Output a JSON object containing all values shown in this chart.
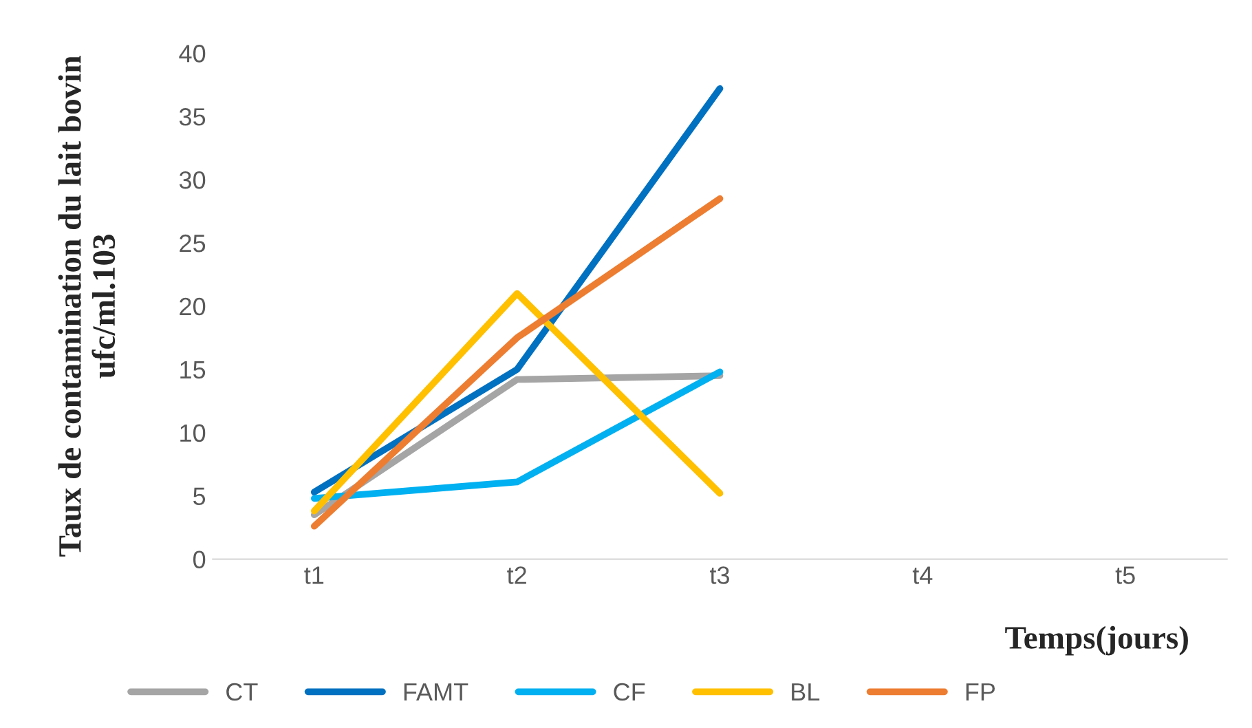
{
  "chart_data": {
    "type": "line",
    "xlabel": "Temps(jours)",
    "ylabel": "Taux de contamination du lait bovin ufc/ml.103",
    "categories": [
      "t1",
      "t2",
      "t3",
      "t4",
      "t5"
    ],
    "series": [
      {
        "name": "CT",
        "color": "#a5a5a5",
        "values": [
          3.5,
          14.2,
          14.5,
          null,
          null
        ]
      },
      {
        "name": "FAMT",
        "color": "#0070c0",
        "values": [
          5.3,
          15,
          37.2,
          null,
          null
        ]
      },
      {
        "name": "CF",
        "color": "#00b0f0",
        "values": [
          4.8,
          6.1,
          14.8,
          null,
          null
        ]
      },
      {
        "name": "BL",
        "color": "#ffc000",
        "values": [
          3.8,
          21,
          5.2,
          null,
          null
        ]
      },
      {
        "name": "FP",
        "color": "#ed7d31",
        "values": [
          2.6,
          17.5,
          28.5,
          null,
          null
        ]
      }
    ],
    "ylim": [
      0,
      40
    ],
    "yticks": [
      0,
      5,
      10,
      15,
      20,
      25,
      30,
      35,
      40
    ],
    "grid": false,
    "legend": "bottom",
    "marker": "none",
    "line_style": "solid"
  }
}
